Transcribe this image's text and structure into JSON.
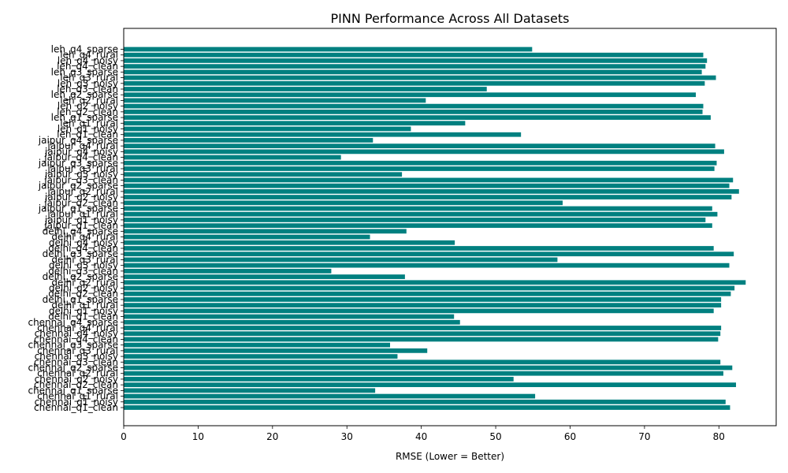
{
  "chart_data": {
    "type": "bar",
    "orientation": "horizontal",
    "title": "PINN Performance Across All Datasets",
    "xlabel": "RMSE (Lower = Better)",
    "ylabel": "",
    "xlim": [
      0,
      87.7
    ],
    "xticks": [
      0,
      10,
      20,
      30,
      40,
      50,
      60,
      70,
      80
    ],
    "bar_color": "#008080",
    "grid": false,
    "categories": [
      "chennai_q1_clean",
      "chennai_q1_noisy",
      "chennai_q1_rural",
      "chennai_q1_sparse",
      "chennai_q2_clean",
      "chennai_q2_noisy",
      "chennai_q2_rural",
      "chennai_q2_sparse",
      "chennai_q3_clean",
      "chennai_q3_noisy",
      "chennai_q3_rural",
      "chennai_q3_sparse",
      "chennai_q4_clean",
      "chennai_q4_noisy",
      "chennai_q4_rural",
      "chennai_q4_sparse",
      "delhi_q1_clean",
      "delhi_q1_noisy",
      "delhi_q1_rural",
      "delhi_q1_sparse",
      "delhi_q2_clean",
      "delhi_q2_noisy",
      "delhi_q2_rural",
      "delhi_q2_sparse",
      "delhi_q3_clean",
      "delhi_q3_noisy",
      "delhi_q3_rural",
      "delhi_q3_sparse",
      "delhi_q4_clean",
      "delhi_q4_noisy",
      "delhi_q4_rural",
      "delhi_q4_sparse",
      "jaipur_q1_clean",
      "jaipur_q1_noisy",
      "jaipur_q1_rural",
      "jaipur_q1_sparse",
      "jaipur_q2_clean",
      "jaipur_q2_noisy",
      "jaipur_q2_rural",
      "jaipur_q2_sparse",
      "jaipur_q3_clean",
      "jaipur_q3_noisy",
      "jaipur_q3_rural",
      "jaipur_q3_sparse",
      "jaipur_q4_clean",
      "jaipur_q4_noisy",
      "jaipur_q4_rural",
      "jaipur_q4_sparse",
      "leh_q1_clean",
      "leh_q1_noisy",
      "leh_q1_rural",
      "leh_q1_sparse",
      "leh_q2_clean",
      "leh_q2_noisy",
      "leh_q2_rural",
      "leh_q2_sparse",
      "leh_q3_clean",
      "leh_q3_noisy",
      "leh_q3_rural",
      "leh_q3_sparse",
      "leh_q4_clean",
      "leh_q4_noisy",
      "leh_q4_rural",
      "leh_q4_sparse"
    ],
    "values": [
      81.5,
      80.9,
      55.3,
      33.8,
      82.3,
      52.4,
      80.6,
      81.8,
      80.2,
      36.8,
      40.8,
      35.8,
      79.9,
      80.2,
      80.3,
      45.2,
      44.4,
      79.3,
      80.3,
      80.3,
      81.6,
      82.1,
      83.6,
      37.8,
      27.9,
      81.4,
      58.3,
      82.0,
      79.3,
      44.5,
      33.1,
      38.0,
      79.1,
      78.2,
      79.8,
      79.1,
      59.0,
      81.7,
      82.7,
      81.4,
      81.9,
      37.4,
      79.4,
      79.7,
      29.2,
      80.7,
      79.5,
      33.5,
      53.4,
      38.6,
      45.9,
      78.9,
      77.8,
      77.9,
      40.6,
      76.9,
      48.8,
      78.1,
      79.6,
      77.7,
      78.2,
      78.4,
      77.9,
      54.9
    ]
  }
}
